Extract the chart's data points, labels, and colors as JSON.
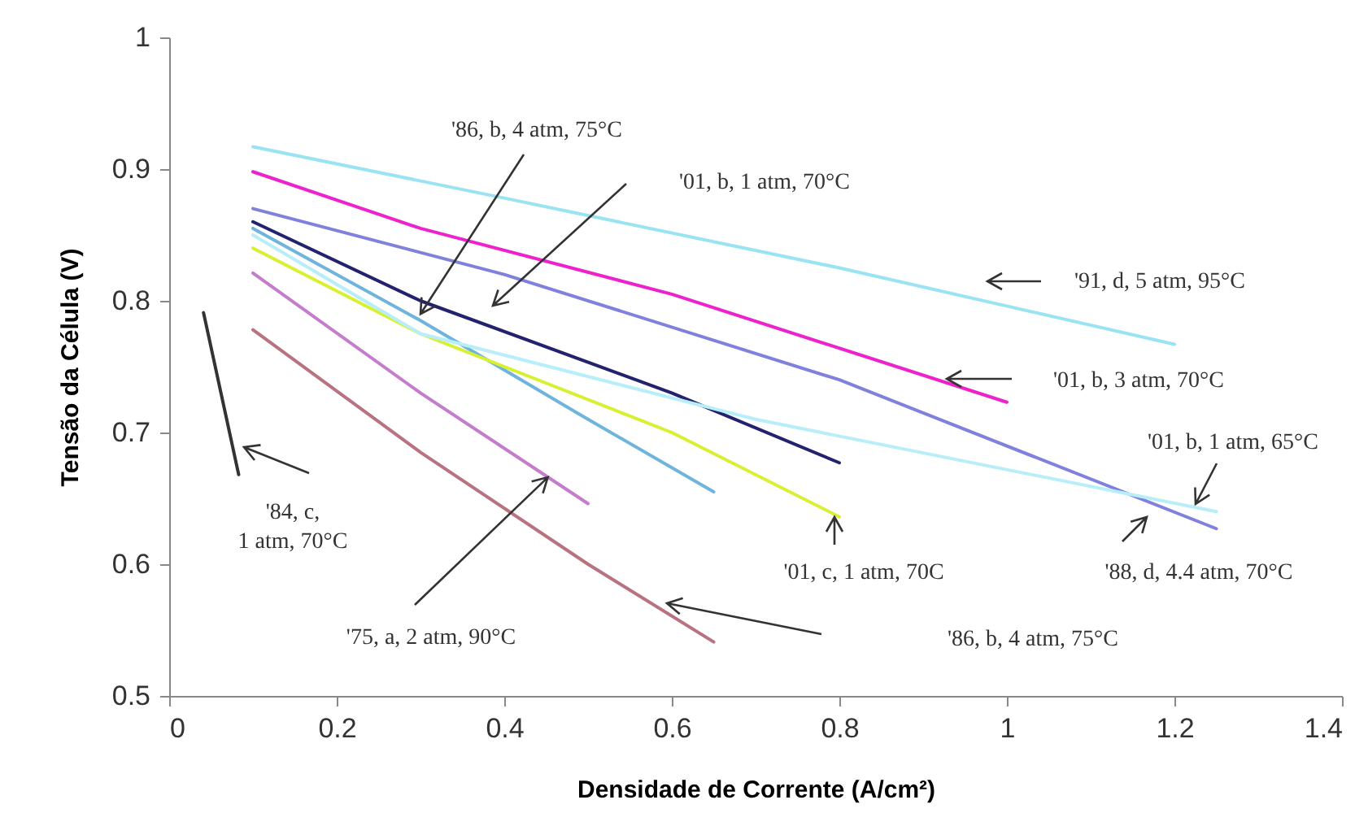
{
  "chart_data": {
    "type": "line",
    "xlabel": "Densidade de Corrente (A/cm²)",
    "ylabel": "Tensão da Célula (V)",
    "xlim": [
      0,
      1.4
    ],
    "ylim": [
      0.5,
      1
    ],
    "xticks": [
      0,
      0.2,
      0.4,
      0.6,
      0.8,
      1,
      1.2,
      1.4
    ],
    "yticks": [
      0.5,
      0.6,
      0.7,
      0.8,
      0.9,
      1
    ],
    "grid": false,
    "legend": false,
    "marker": "none",
    "line_style": "solid",
    "series": [
      {
        "color": "#99e3f2",
        "x": [
          0.1,
          0.4,
          0.8,
          1.2
        ],
        "values": [
          0.917,
          0.878,
          0.825,
          0.767
        ]
      },
      {
        "color": "#ee22cc",
        "x": [
          0.1,
          0.3,
          0.6,
          1.0
        ],
        "values": [
          0.898,
          0.855,
          0.805,
          0.723
        ]
      },
      {
        "color": "#8080dd",
        "x": [
          0.1,
          0.4,
          0.8,
          1.25
        ],
        "values": [
          0.87,
          0.82,
          0.74,
          0.627
        ]
      },
      {
        "color": "#22226e",
        "x": [
          0.1,
          0.3,
          0.6,
          0.8
        ],
        "values": [
          0.86,
          0.8,
          0.73,
          0.677
        ]
      },
      {
        "color": "#6fb4dc",
        "x": [
          0.1,
          0.3,
          0.5,
          0.65
        ],
        "values": [
          0.855,
          0.785,
          0.71,
          0.655
        ]
      },
      {
        "color": "#d8f030",
        "x": [
          0.1,
          0.3,
          0.6,
          0.8
        ],
        "values": [
          0.84,
          0.775,
          0.7,
          0.636
        ]
      },
      {
        "color": "#b8eefa",
        "x": [
          0.1,
          0.3,
          0.7,
          1.25
        ],
        "values": [
          0.85,
          0.775,
          0.71,
          0.64
        ]
      },
      {
        "color": "#c47ccc",
        "x": [
          0.1,
          0.3,
          0.5
        ],
        "values": [
          0.821,
          0.73,
          0.646
        ]
      },
      {
        "color": "#b87280",
        "x": [
          0.1,
          0.3,
          0.5,
          0.65
        ],
        "values": [
          0.778,
          0.685,
          0.6,
          0.541
        ]
      },
      {
        "color": "#333333",
        "x": [
          0.041,
          0.083
        ],
        "values": [
          0.791,
          0.668
        ]
      }
    ],
    "annotations": [
      {
        "text": "'86, b, 4 atm, 75°C",
        "x": 0.3,
        "y": 0.79
      },
      "'01, b, 1 atm, 70°C",
      "'91, d, 5 atm, 95°C",
      "'01, b, 3 atm, 70°C",
      "'01, b, 1 atm, 65°C",
      "'88, d, 4.4 atm, 70°C",
      "'01, c, 1 atm, 70C",
      "'86, b, 4 atm, 75°C",
      {
        "text": "'75, a, 2 atm, 90°C",
        "x": 0.452,
        "y": 0.666
      },
      "'84, c,\n1 atm, 70°C"
    ]
  }
}
